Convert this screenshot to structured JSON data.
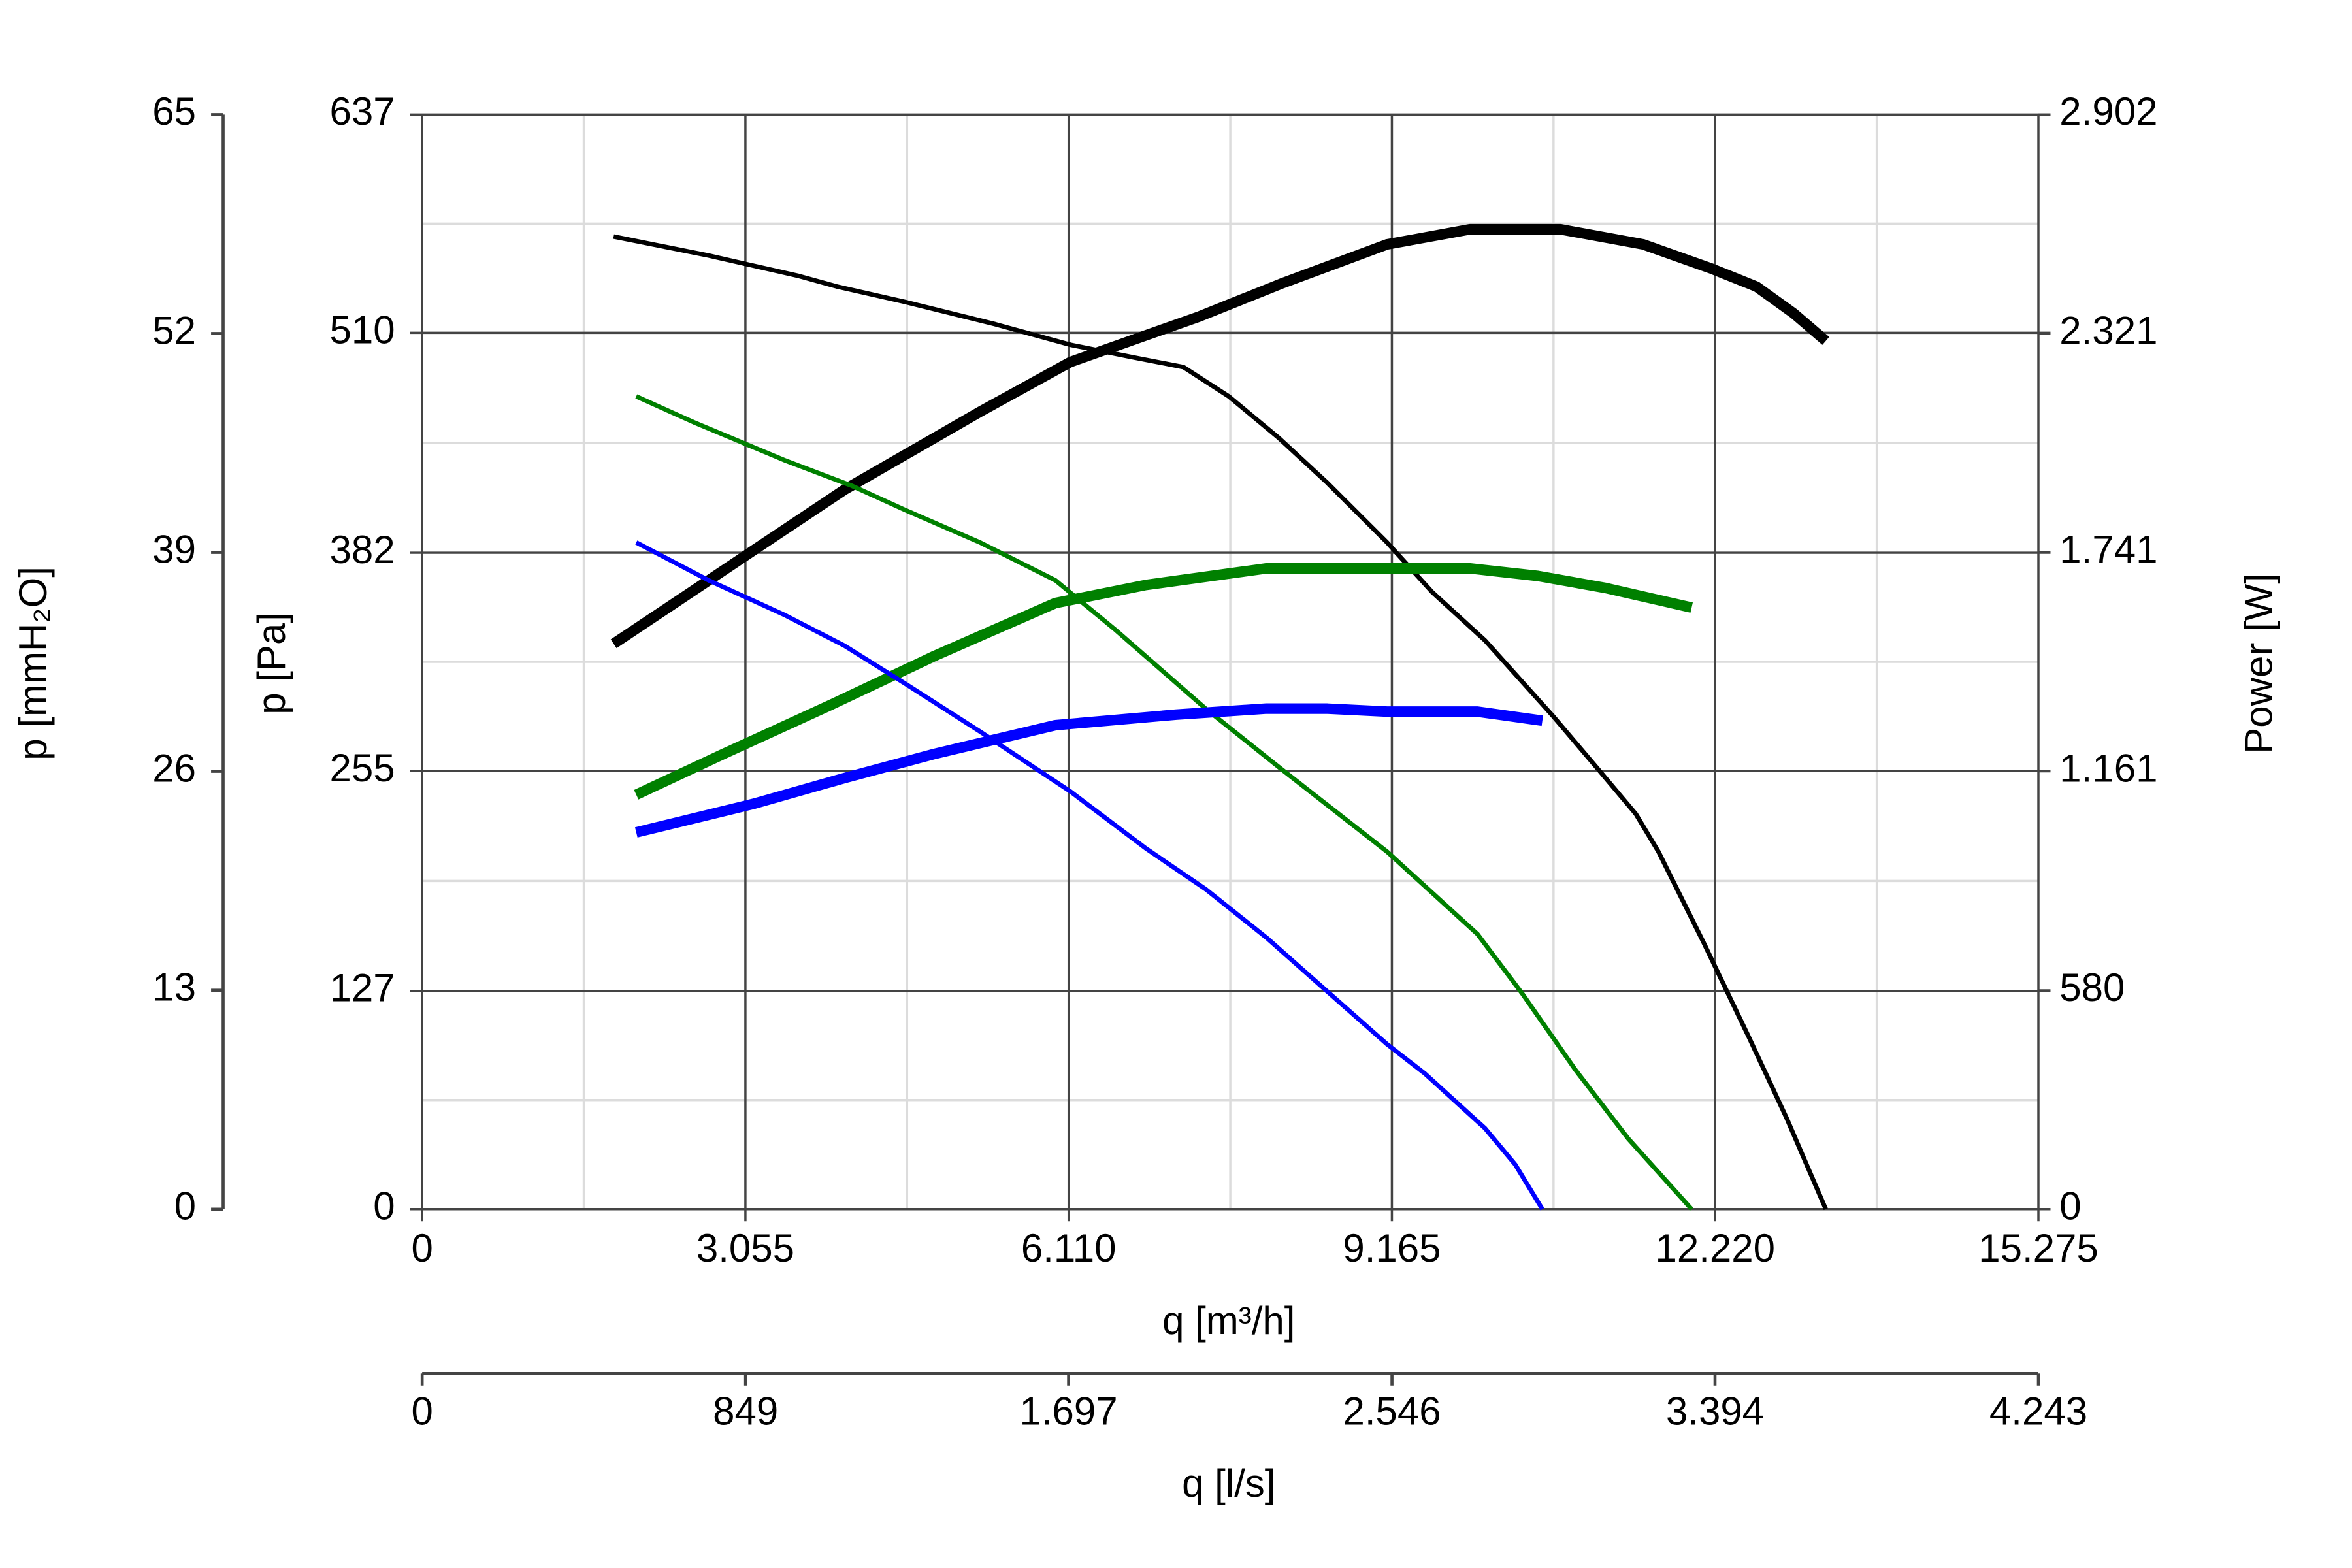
{
  "chart_data": {
    "type": "line",
    "xlabel": "q [m³/h]",
    "ylabel": "p [Pa]",
    "y2label": "Power [W]",
    "y3label": "p [mmH₂O]",
    "x2label": "q [l/s]",
    "xlim": [
      0,
      15275
    ],
    "xticks": [
      0,
      {
        "value": 3055,
        "label": "3.055"
      },
      {
        "value": 6110,
        "label": "6.110"
      },
      {
        "value": 9165,
        "label": "9.165"
      },
      {
        "value": 12220,
        "label": "12.220"
      },
      {
        "value": 15275,
        "label": "15.275"
      }
    ],
    "x2lim": [
      0,
      4243
    ],
    "x2ticks": [
      0,
      849,
      {
        "value": 1697,
        "label": "1.697"
      },
      {
        "value": 2546,
        "label": "2.546"
      },
      {
        "value": 3394,
        "label": "3.394"
      },
      {
        "value": 4243,
        "label": "4.243"
      }
    ],
    "ylim": [
      0,
      637
    ],
    "yticks": [
      0,
      127,
      255,
      382,
      510,
      637
    ],
    "y2lim": [
      0,
      2902
    ],
    "y2ticks": [
      0,
      580,
      {
        "value": 1161,
        "label": "1.161"
      },
      {
        "value": 1741,
        "label": "1.741"
      },
      {
        "value": 2321,
        "label": "2.321"
      },
      {
        "value": 2902,
        "label": "2.902"
      }
    ],
    "y3lim": [
      0,
      65
    ],
    "y3ticks": [
      0,
      13,
      26,
      39,
      52,
      65
    ],
    "grid": true,
    "series": [
      {
        "color": "#000000",
        "x": [
          1810,
          2707,
          3562,
          3918,
          4560,
          5415,
          6127,
          6697,
          7196,
          7623,
          8093,
          8549,
          9119,
          9547,
          10046,
          10687,
          11114,
          11470,
          11684,
          12112,
          12539,
          12895,
          13266
        ],
        "values": [
          566,
          555,
          543,
          537,
          528,
          515,
          503,
          496,
          490,
          473,
          449,
          423,
          388,
          359,
          331,
          287,
          256,
          230,
          208,
          155,
          100,
          53,
          0
        ]
      },
      {
        "color": "#000000",
        "axis": "y2",
        "x": [
          1810,
          2280,
          3135,
          3990,
          5272,
          6127,
          7338,
          8121,
          9119,
          9903,
          10758,
          11541,
          12183,
          12610,
          12966,
          13266
        ],
        "values": [
          1499,
          1587,
          1747,
          1907,
          2114,
          2246,
          2366,
          2454,
          2558,
          2598,
          2598,
          2558,
          2494,
          2446,
          2374,
          2302
        ]
      },
      {
        "color": "#008000",
        "x": [
          2023,
          2565,
          3420,
          4061,
          4560,
          5272,
          5985,
          6555,
          7409,
          8122,
          9119,
          9974,
          10402,
          10901,
          11399,
          11998
        ],
        "values": [
          473,
          458,
          436,
          421,
          407,
          388,
          366,
          337,
          291,
          256,
          208,
          160,
          125,
          81,
          41,
          0
        ]
      },
      {
        "color": "#008000",
        "axis": "y2",
        "x": [
          2023,
          2850,
          3847,
          4845,
          5985,
          6840,
          7979,
          8834,
          9903,
          10544,
          11186,
          11998
        ],
        "values": [
          1099,
          1207,
          1335,
          1467,
          1607,
          1655,
          1699,
          1699,
          1699,
          1679,
          1647,
          1595
        ]
      },
      {
        "color": "#0000ff",
        "x": [
          2023,
          2707,
          3420,
          3990,
          4560,
          5272,
          6127,
          6840,
          7409,
          7979,
          8549,
          9119,
          9475,
          10045,
          10330,
          10587
        ],
        "values": [
          388,
          366,
          346,
          328,
          306,
          278,
          243,
          210,
          186,
          158,
          127,
          96,
          79,
          47,
          26,
          0
        ]
      },
      {
        "color": "#0000ff",
        "axis": "y2",
        "x": [
          2023,
          3135,
          3990,
          4845,
          5985,
          7124,
          7979,
          8549,
          9119,
          9974,
          10587
        ],
        "values": [
          999,
          1075,
          1143,
          1207,
          1283,
          1311,
          1327,
          1327,
          1319,
          1319,
          1295
        ]
      }
    ]
  }
}
